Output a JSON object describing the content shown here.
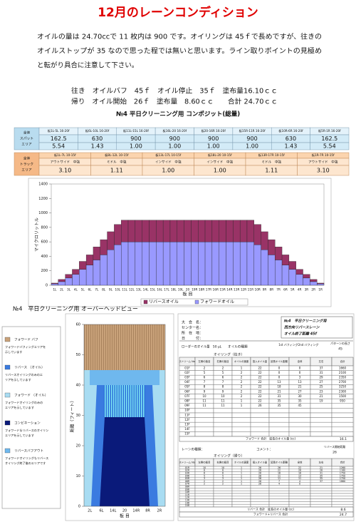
{
  "header": {
    "title": "12月のレーンコンディション"
  },
  "intro": [
    "オイルの量は 24.70ccで 11 枚内は 900 です。オイリングは 45ｆで長めですが、往きの",
    "オイルストップが 35 なので思った程では無いと思います。ライン取りポイントの見極め",
    "と転がり具合に注意して下さい。"
  ],
  "summary": [
    "往き　オイルバフ　45ｆ　オイル停止　35ｆ　塗布量16.10ｃｃ",
    "帰り　オイル開始　26ｆ　塗布量　8.60ｃｃ　　合計 24.70ｃｃ"
  ],
  "composite": {
    "title": "№4 平日クリーニング用 コンポジット(総量)",
    "spot": {
      "label": [
        "全体",
        "スパット",
        "エリア"
      ],
      "ranges": [
        "板1L-5L 16-20f",
        "板6L-10L 16-20f",
        "板11L-15L 16-20f",
        "板16L-20 16-20f",
        "板20-16R 16-20f",
        "板15R-11R 16-20f",
        "板10R-6R 16-20f",
        "板5R-1R 16-20f"
      ],
      "values": [
        162.5,
        630,
        900,
        900,
        900,
        900,
        630,
        162.5
      ],
      "ratios": [
        "5.54",
        "1.43",
        "1.00",
        "1.00",
        "1.00",
        "1.00",
        "1.43",
        "5.54"
      ]
    },
    "track": {
      "label": [
        "全体",
        "トラック",
        "エリア"
      ],
      "ranges": [
        "板1L-7L 10-15f",
        "板8L-12L 10-15f",
        "板13L-17L 10-15f",
        "板18L-20 10-15f",
        "板13R-17R 10-15f",
        "板1R-7R 10-15f"
      ],
      "zones": [
        "アウトサイド　中強",
        "ミドル　中強",
        "インサイド　中強",
        "インサイド　中強",
        "ミドル　中強",
        "アウトサイド　中強"
      ],
      "ratios": [
        "3.10",
        "1.11",
        "1.00",
        "1.00",
        "1.11",
        "3.10"
      ]
    }
  },
  "chart_data": [
    {
      "type": "bar",
      "stacked": true,
      "ylabel": "マイクロリットル",
      "xlabel": "板 目",
      "categories": [
        "1L",
        "2L",
        "3L",
        "4L",
        "5L",
        "6L",
        "7L",
        "8L",
        "9L",
        "10L",
        "11L",
        "12L",
        "13L",
        "14L",
        "15L",
        "16L",
        "17L",
        "18L",
        "19L",
        "20",
        "19R",
        "18R",
        "17R",
        "16R",
        "15R",
        "14R",
        "13R",
        "12R",
        "11R",
        "10R",
        "9R",
        "8R",
        "7R",
        "6R",
        "5R",
        "4R",
        "3R",
        "2R",
        "1R"
      ],
      "series": [
        {
          "name": "フォワードオイル",
          "color": "#9999ff",
          "values": [
            20,
            50,
            100,
            150,
            220,
            280,
            350,
            420,
            490,
            560,
            600,
            600,
            600,
            600,
            600,
            600,
            600,
            600,
            600,
            600,
            600,
            600,
            600,
            600,
            600,
            600,
            600,
            600,
            600,
            560,
            490,
            420,
            350,
            280,
            220,
            150,
            100,
            50,
            20
          ]
        },
        {
          "name": "リバースオイル",
          "color": "#993366",
          "values": [
            10,
            30,
            50,
            70,
            110,
            140,
            180,
            210,
            250,
            280,
            300,
            300,
            300,
            300,
            300,
            300,
            300,
            300,
            300,
            300,
            300,
            300,
            300,
            300,
            300,
            300,
            300,
            300,
            300,
            280,
            250,
            210,
            180,
            140,
            110,
            70,
            50,
            30,
            10
          ]
        }
      ],
      "ylim": [
        0,
        1400
      ],
      "yticks": [
        0,
        200,
        400,
        600,
        800,
        1000,
        1200,
        1400
      ],
      "grid": false,
      "legend": "bottom"
    },
    {
      "type": "overhead",
      "title": "№4　平日クリーニング用 オーバーヘッドビュー",
      "ylabel": "距離（フィート）",
      "xlabel": "板 目",
      "categories": [
        "2L",
        "6L",
        "14L",
        "20",
        "14R",
        "8R",
        "2R"
      ],
      "ylim": [
        0,
        60
      ],
      "yticks": [
        0,
        10,
        20,
        30,
        40,
        50,
        60
      ],
      "legend": [
        {
          "name": "フォワード バフ",
          "color": "#c9a27a",
          "desc": [
            "フォワードバフィングエリアを",
            "示しています"
          ]
        },
        {
          "name": "リバース （オイル）",
          "color": "#3a7be0",
          "desc": [
            "リバースオイリングのみのエ",
            "リアを示しています"
          ]
        },
        {
          "name": "フォワード （オイル）",
          "color": "#a8dcf2",
          "desc": [
            "フォワードオイリングのみの",
            "エリアを示しています"
          ]
        },
        {
          "name": "コンビネーション",
          "color": "#0a1a7a",
          "desc": [
            "フォワード＆リバースのオイリン",
            "エリアを示しています"
          ]
        },
        {
          "name": "リバースバフアウト",
          "color": "#6fb8ee",
          "desc": [
            "フォワードオイリングもリバース",
            "オイリング終了後のエリアです"
          ]
        }
      ]
    }
  ],
  "form": {
    "fields": [
      "大　会　名：",
      "センター名：",
      "所　在　地：",
      "日　　　付："
    ],
    "pattern": [
      "№4　平日クリーニング用",
      "西方向リバースレーン",
      "オイル終了距離 45f"
    ],
    "loader": "ローダーのオイル量　50 μL",
    "oil_type": "オイルの種類",
    "buff": [
      "1st バフィング",
      "2nd バフィング"
    ],
    "length_label": "パターンの長さ",
    "length": "45",
    "forward": {
      "title": "オイリング（往き）",
      "columns": [
        "ストリーム No.",
        "左側の板目",
        "右側の板目",
        "オイルの速度",
        "投入オイル量",
        "延長オイル距離",
        "全体",
        "左右",
        "合計"
      ],
      "rows": [
        [
          "01F",
          "2",
          "2",
          "1",
          "22",
          "0",
          "0",
          "37",
          "1660"
        ],
        [
          "02F",
          "5",
          "5",
          "2",
          "22",
          "0",
          "0",
          "31",
          "2100"
        ],
        [
          "03F",
          "6",
          "6",
          "2",
          "22",
          "0",
          "3",
          "29",
          "2350"
        ],
        [
          "04F",
          "7",
          "7",
          "2",
          "22",
          "13",
          "13",
          "27",
          "2700"
        ],
        [
          "05F",
          "8",
          "8",
          "2",
          "22",
          "18",
          "21",
          "25",
          "3250"
        ],
        [
          "06F",
          "9",
          "9",
          "2",
          "22",
          "21",
          "27",
          "23",
          "2300"
        ],
        [
          "07F",
          "10",
          "10",
          "2",
          "22",
          "31",
          "30",
          "21",
          "1500"
        ],
        [
          "08F",
          "11",
          "11",
          "1",
          "22",
          "35",
          "35",
          "19",
          "950"
        ],
        [
          "09F",
          "11",
          "11",
          "1",
          "26",
          "35",
          "45"
        ],
        [
          "10F"
        ],
        [
          "11F"
        ],
        [
          "12F"
        ],
        [
          "13F"
        ],
        [
          "14F"
        ],
        [
          "15F"
        ]
      ],
      "total_label": "フォワード 合計　延長のオイル量 (cc)",
      "total": "16.1"
    },
    "reverse": {
      "lane_type": "レーンの種類：",
      "comment": "コメント：",
      "start_label": "リバース開始距離",
      "start": "26",
      "title": "オイリング（帰り）",
      "columns": [
        "ストリーム No.",
        "左側の板目",
        "右側の板目",
        "オイルの速度",
        "投入オイル量",
        "延長オイル距離",
        "全体",
        "左右",
        "合計"
      ],
      "rows": [
        [
          "01R",
          "10",
          "10",
          "1",
          "26",
          "26",
          "22",
          "21",
          "1260"
        ],
        [
          "02R",
          "8",
          "8",
          "1",
          "26",
          "22",
          "26",
          "28",
          "1180"
        ],
        [
          "03R",
          "6",
          "6",
          "1",
          "26",
          "16",
          "18",
          "31",
          "1750"
        ],
        [
          "04R",
          "5",
          "5",
          "1",
          "26",
          "11",
          "13",
          "35",
          "1750"
        ],
        [
          "05R",
          "3",
          "3",
          "1",
          "26",
          "11",
          "11",
          "35",
          "1750"
        ],
        [
          "06R",
          "2",
          "2",
          "1",
          "26",
          "7",
          "4",
          "37",
          "1860"
        ],
        [
          "07R",
          "2",
          "2",
          "1",
          "26",
          "4",
          "0"
        ],
        [
          "08R"
        ],
        [
          "09R"
        ],
        [
          "10R"
        ],
        [
          "11R"
        ],
        [
          "12R"
        ],
        [
          "13R"
        ],
        [
          "14R"
        ],
        [
          "15R"
        ]
      ],
      "total_label": "リバース 合計　延長のオイル量 (cc)",
      "total": "8.6",
      "grand_label": "フォワード+リバース 合計",
      "grand_total": "24.7"
    }
  }
}
